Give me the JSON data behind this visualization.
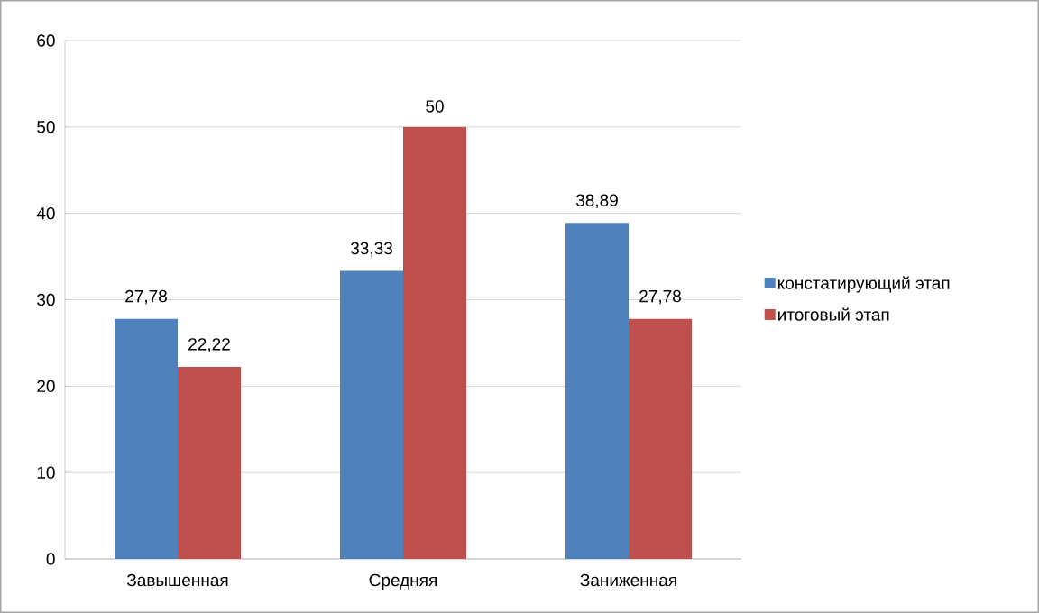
{
  "chart_data": {
    "type": "bar",
    "categories": [
      "Завышенная",
      "Средняя",
      "Заниженная"
    ],
    "series": [
      {
        "name": "констатирующий этап",
        "color": "#4f81bd",
        "values": [
          27.78,
          33.33,
          38.89
        ],
        "value_labels": [
          "27,78",
          "33,33",
          "38,89"
        ]
      },
      {
        "name": "итоговый этап",
        "color": "#c0504d",
        "values": [
          22.22,
          50,
          27.78
        ],
        "value_labels": [
          "22,22",
          "50",
          "27,78"
        ]
      }
    ],
    "ylim": [
      0,
      60
    ],
    "yticks": [
      0,
      10,
      20,
      30,
      40,
      50,
      60
    ],
    "grid": "y",
    "legend": "right"
  }
}
